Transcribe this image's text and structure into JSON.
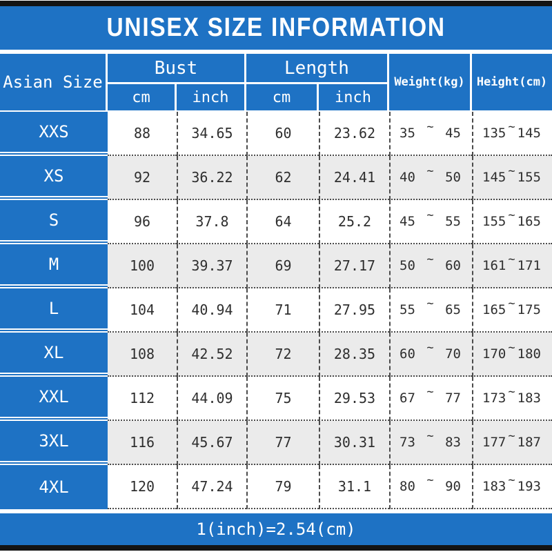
{
  "chart_data": {
    "type": "table",
    "title": "UNISEX SIZE INFORMATION",
    "footnote": "1(inch)=2.54(cm)",
    "tilde": "~",
    "columns": {
      "size_label": "Asian Size",
      "bust": "Bust",
      "length": "Length",
      "cm": "cm",
      "inch": "inch",
      "weight": "Weight(kg)",
      "height": "Height(cm)"
    },
    "rows": [
      {
        "size": "XXS",
        "bust_cm": "88",
        "bust_inch": "34.65",
        "length_cm": "60",
        "length_inch": "23.62",
        "weight_min": "35",
        "weight_max": "45",
        "height_min": "135",
        "height_max": "145"
      },
      {
        "size": "XS",
        "bust_cm": "92",
        "bust_inch": "36.22",
        "length_cm": "62",
        "length_inch": "24.41",
        "weight_min": "40",
        "weight_max": "50",
        "height_min": "145",
        "height_max": "155"
      },
      {
        "size": "S",
        "bust_cm": "96",
        "bust_inch": "37.8",
        "length_cm": "64",
        "length_inch": "25.2",
        "weight_min": "45",
        "weight_max": "55",
        "height_min": "155",
        "height_max": "165"
      },
      {
        "size": "M",
        "bust_cm": "100",
        "bust_inch": "39.37",
        "length_cm": "69",
        "length_inch": "27.17",
        "weight_min": "50",
        "weight_max": "60",
        "height_min": "161",
        "height_max": "171"
      },
      {
        "size": "L",
        "bust_cm": "104",
        "bust_inch": "40.94",
        "length_cm": "71",
        "length_inch": "27.95",
        "weight_min": "55",
        "weight_max": "65",
        "height_min": "165",
        "height_max": "175"
      },
      {
        "size": "XL",
        "bust_cm": "108",
        "bust_inch": "42.52",
        "length_cm": "72",
        "length_inch": "28.35",
        "weight_min": "60",
        "weight_max": "70",
        "height_min": "170",
        "height_max": "180"
      },
      {
        "size": "XXL",
        "bust_cm": "112",
        "bust_inch": "44.09",
        "length_cm": "75",
        "length_inch": "29.53",
        "weight_min": "67",
        "weight_max": "77",
        "height_min": "173",
        "height_max": "183"
      },
      {
        "size": "3XL",
        "bust_cm": "116",
        "bust_inch": "45.67",
        "length_cm": "77",
        "length_inch": "30.31",
        "weight_min": "73",
        "weight_max": "83",
        "height_min": "177",
        "height_max": "187"
      },
      {
        "size": "4XL",
        "bust_cm": "120",
        "bust_inch": "47.24",
        "length_cm": "79",
        "length_inch": "31.1",
        "weight_min": "80",
        "weight_max": "90",
        "height_min": "183",
        "height_max": "193"
      }
    ],
    "colors": {
      "table_blue": "#1e72c4",
      "alt_row_gray": "#ebebeb",
      "border_bar_black": "#141414",
      "data_text": "#2e2e2e"
    }
  }
}
